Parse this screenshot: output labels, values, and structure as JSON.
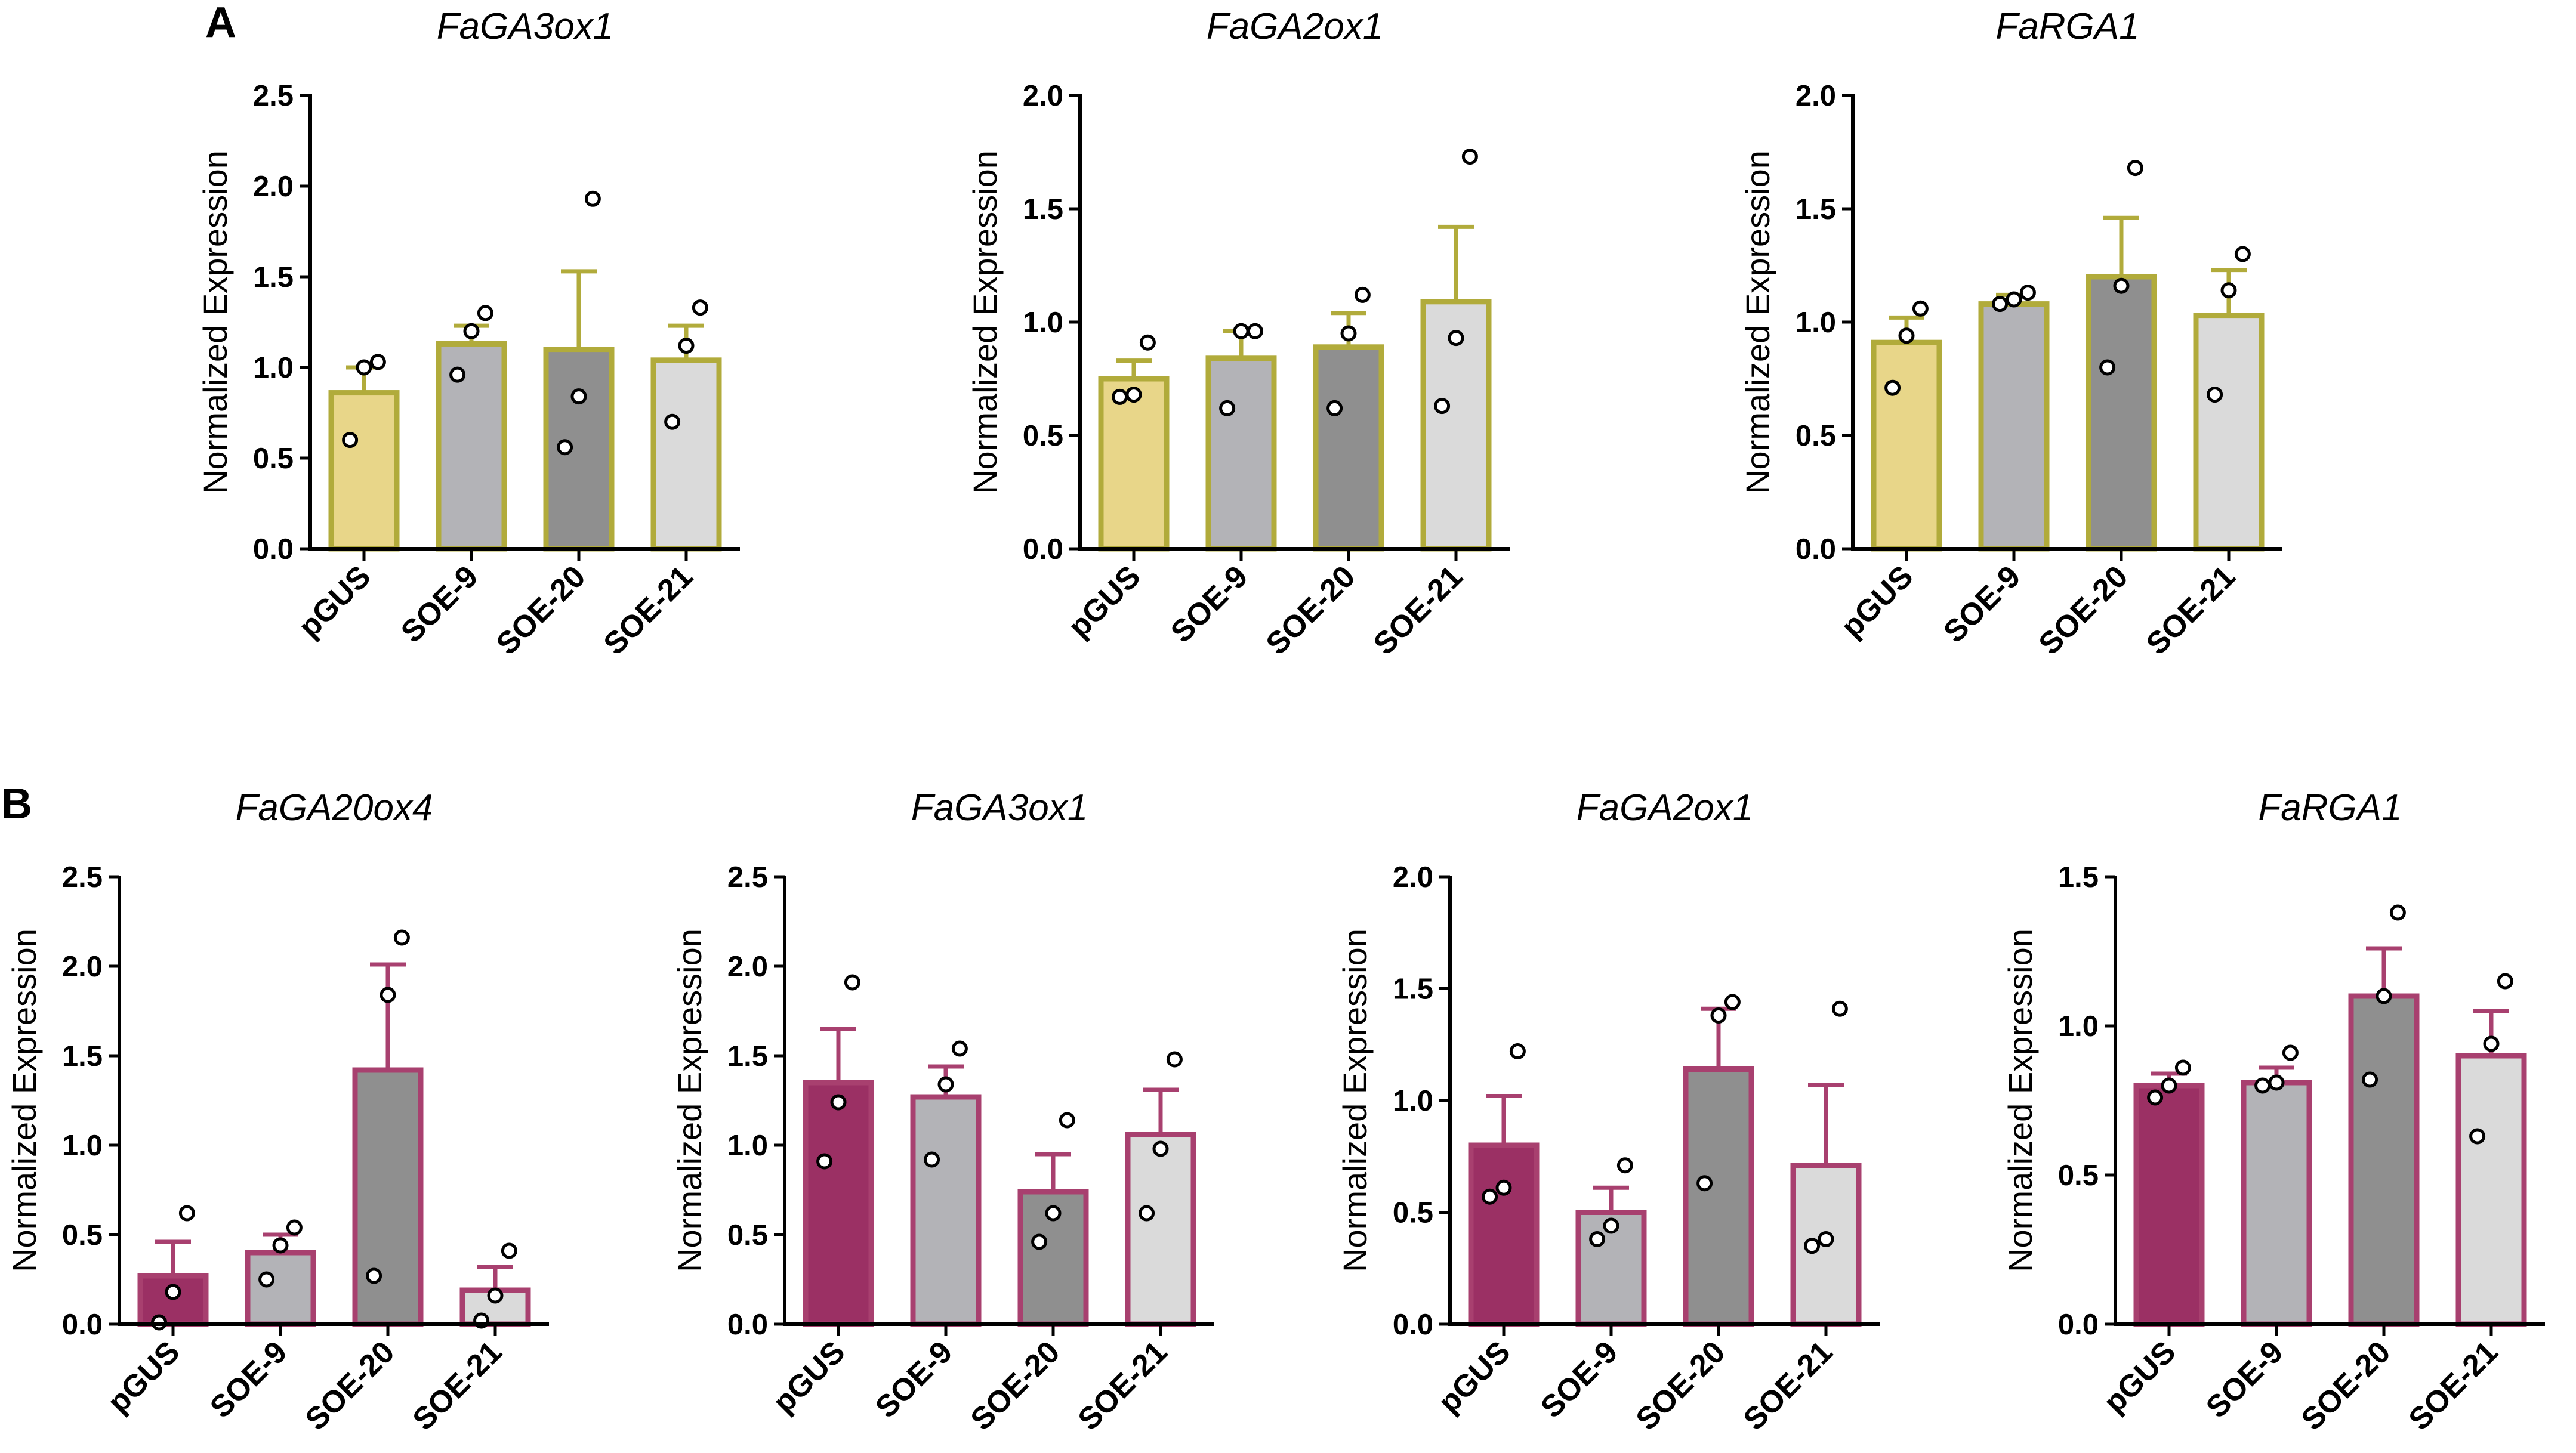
{
  "panels": [
    {
      "letter": "A"
    },
    {
      "letter": "B"
    }
  ],
  "chart_data": [
    {
      "type": "bar",
      "panel": "A",
      "title": "FaGA3ox1",
      "categories": [
        "pGUS",
        "SOE-9",
        "SOE-20",
        "SOE-21"
      ],
      "values": [
        0.86,
        1.13,
        1.1,
        1.04
      ],
      "errors": [
        0.14,
        0.1,
        0.43,
        0.19
      ],
      "points": [
        [
          1.03,
          1.0,
          0.6
        ],
        [
          1.3,
          1.2,
          0.96
        ],
        [
          1.93,
          0.84,
          0.56
        ],
        [
          1.33,
          1.12,
          0.7
        ]
      ],
      "ylabel": "Normalized Expression",
      "xlabel": "",
      "ylim": [
        0,
        2.5
      ],
      "yticks": [
        0.0,
        0.5,
        1.0,
        1.5,
        2.0,
        2.5
      ],
      "ytick_labels": [
        "0.0",
        "0.5",
        "1.0",
        "1.5",
        "2.0",
        "2.5"
      ],
      "colors": {
        "fill": [
          "#e8d689",
          "#b3b3b7",
          "#8f8f8f",
          "#dadada"
        ],
        "stroke": "#b1ab3b"
      }
    },
    {
      "type": "bar",
      "panel": "A",
      "title": "FaGA2ox1",
      "categories": [
        "pGUS",
        "SOE-9",
        "SOE-20",
        "SOE-21"
      ],
      "values": [
        0.75,
        0.84,
        0.89,
        1.09
      ],
      "errors": [
        0.08,
        0.12,
        0.15,
        0.33
      ],
      "points": [
        [
          0.91,
          0.68,
          0.67
        ],
        [
          0.96,
          0.96,
          0.62
        ],
        [
          1.12,
          0.95,
          0.62
        ],
        [
          1.73,
          0.93,
          0.63
        ]
      ],
      "ylabel": "Normalized Expression",
      "xlabel": "",
      "ylim": [
        0,
        2.0
      ],
      "yticks": [
        0.0,
        0.5,
        1.0,
        1.5,
        2.0
      ],
      "ytick_labels": [
        "0.0",
        "0.5",
        "1.0",
        "1.5",
        "2.0"
      ],
      "colors": {
        "fill": [
          "#e8d689",
          "#b3b3b7",
          "#8f8f8f",
          "#dadada"
        ],
        "stroke": "#b1ab3b"
      }
    },
    {
      "type": "bar",
      "panel": "A",
      "title": "FaRGA1",
      "categories": [
        "pGUS",
        "SOE-9",
        "SOE-20",
        "SOE-21"
      ],
      "values": [
        0.91,
        1.08,
        1.2,
        1.03
      ],
      "errors": [
        0.11,
        0.04,
        0.26,
        0.2
      ],
      "points": [
        [
          1.06,
          0.94,
          0.71
        ],
        [
          1.13,
          1.1,
          1.08
        ],
        [
          1.68,
          1.16,
          0.8
        ],
        [
          1.3,
          1.14,
          0.68
        ]
      ],
      "ylabel": "Normalized Expression",
      "xlabel": "",
      "ylim": [
        0,
        2.0
      ],
      "yticks": [
        0.0,
        0.5,
        1.0,
        1.5,
        2.0
      ],
      "ytick_labels": [
        "0.0",
        "0.5",
        "1.0",
        "1.5",
        "2.0"
      ],
      "colors": {
        "fill": [
          "#e8d689",
          "#b3b3b7",
          "#8f8f8f",
          "#dadada"
        ],
        "stroke": "#b1ab3b"
      }
    },
    {
      "type": "bar",
      "panel": "B",
      "title": "FaGA20ox4",
      "categories": [
        "pGUS",
        "SOE-9",
        "SOE-20",
        "SOE-21"
      ],
      "values": [
        0.27,
        0.4,
        1.42,
        0.19
      ],
      "errors": [
        0.19,
        0.1,
        0.59,
        0.13
      ],
      "points": [
        [
          0.62,
          0.18,
          0.01
        ],
        [
          0.54,
          0.44,
          0.25
        ],
        [
          2.16,
          1.84,
          0.27
        ],
        [
          0.41,
          0.16,
          0.02
        ]
      ],
      "ylabel": "Normalized Expression",
      "xlabel": "",
      "ylim": [
        0,
        2.5
      ],
      "yticks": [
        0.0,
        0.5,
        1.0,
        1.5,
        2.0,
        2.5
      ],
      "ytick_labels": [
        "0.0",
        "0.5",
        "1.0",
        "1.5",
        "2.0",
        "2.5"
      ],
      "colors": {
        "fill": [
          "#9b3064",
          "#b3b3b7",
          "#8f8f8f",
          "#dadada"
        ],
        "stroke": "#a8406f"
      }
    },
    {
      "type": "bar",
      "panel": "B",
      "title": "FaGA3ox1",
      "categories": [
        "pGUS",
        "SOE-9",
        "SOE-20",
        "SOE-21"
      ],
      "values": [
        1.35,
        1.27,
        0.74,
        1.06
      ],
      "errors": [
        0.3,
        0.17,
        0.21,
        0.25
      ],
      "points": [
        [
          1.91,
          1.24,
          0.91
        ],
        [
          1.54,
          1.34,
          0.92
        ],
        [
          1.14,
          0.62,
          0.46
        ],
        [
          1.48,
          0.98,
          0.62
        ]
      ],
      "ylabel": "Normalized Expression",
      "xlabel": "",
      "ylim": [
        0,
        2.5
      ],
      "yticks": [
        0.0,
        0.5,
        1.0,
        1.5,
        2.0,
        2.5
      ],
      "ytick_labels": [
        "0.0",
        "0.5",
        "1.0",
        "1.5",
        "2.0",
        "2.5"
      ],
      "colors": {
        "fill": [
          "#9b3064",
          "#b3b3b7",
          "#8f8f8f",
          "#dadada"
        ],
        "stroke": "#a8406f"
      }
    },
    {
      "type": "bar",
      "panel": "B",
      "title": "FaGA2ox1",
      "categories": [
        "pGUS",
        "SOE-9",
        "SOE-20",
        "SOE-21"
      ],
      "values": [
        0.8,
        0.5,
        1.14,
        0.71
      ],
      "errors": [
        0.22,
        0.11,
        0.27,
        0.36
      ],
      "points": [
        [
          1.22,
          0.61,
          0.57
        ],
        [
          0.71,
          0.44,
          0.38
        ],
        [
          1.44,
          1.38,
          0.63
        ],
        [
          1.41,
          0.38,
          0.35
        ]
      ],
      "ylabel": "Normalized Expression",
      "xlabel": "",
      "ylim": [
        0,
        2.0
      ],
      "yticks": [
        0.0,
        0.5,
        1.0,
        1.5,
        2.0
      ],
      "ytick_labels": [
        "0.0",
        "0.5",
        "1.0",
        "1.5",
        "2.0"
      ],
      "colors": {
        "fill": [
          "#9b3064",
          "#b3b3b7",
          "#8f8f8f",
          "#dadada"
        ],
        "stroke": "#a8406f"
      }
    },
    {
      "type": "bar",
      "panel": "B",
      "title": "FaRGA1",
      "categories": [
        "pGUS",
        "SOE-9",
        "SOE-20",
        "SOE-21"
      ],
      "values": [
        0.8,
        0.81,
        1.1,
        0.9
      ],
      "errors": [
        0.04,
        0.05,
        0.16,
        0.15
      ],
      "points": [
        [
          0.86,
          0.8,
          0.76
        ],
        [
          0.91,
          0.81,
          0.8
        ],
        [
          1.38,
          1.1,
          0.82
        ],
        [
          1.15,
          0.94,
          0.63
        ]
      ],
      "ylabel": "Normalized Expression",
      "xlabel": "",
      "ylim": [
        0,
        1.5
      ],
      "yticks": [
        0.0,
        0.5,
        1.0,
        1.5
      ],
      "ytick_labels": [
        "0.0",
        "0.5",
        "1.0",
        "1.5"
      ],
      "colors": {
        "fill": [
          "#9b3064",
          "#b3b3b7",
          "#8f8f8f",
          "#dadada"
        ],
        "stroke": "#a8406f"
      }
    }
  ]
}
